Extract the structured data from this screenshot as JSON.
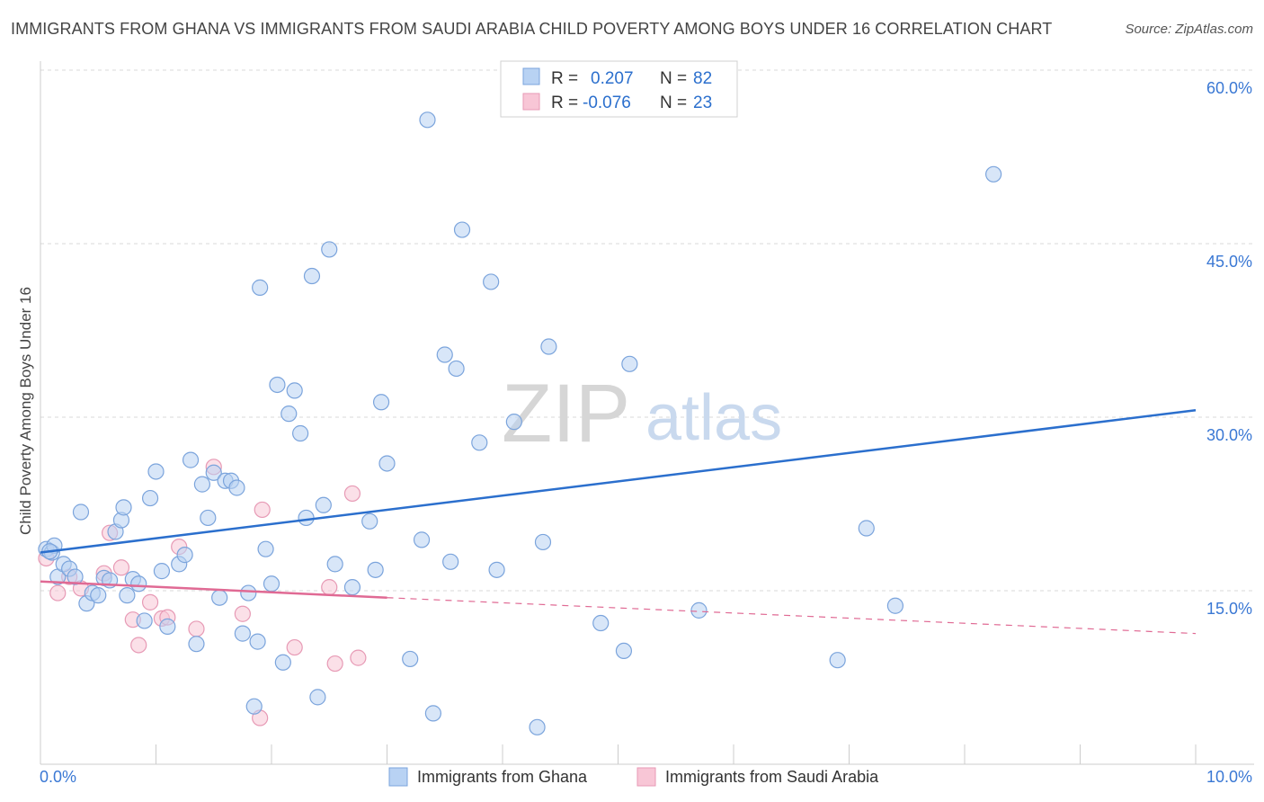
{
  "header": {
    "title": "IMMIGRANTS FROM GHANA VS IMMIGRANTS FROM SAUDI ARABIA CHILD POVERTY AMONG BOYS UNDER 16 CORRELATION CHART",
    "source": "Source: ZipAtlas.com"
  },
  "watermark": {
    "zip": "ZIP",
    "atlas": "atlas"
  },
  "legend_top": {
    "rows": [
      {
        "r_label": "R =",
        "r_value": "0.207",
        "n_label": "N =",
        "n_value": "82"
      },
      {
        "r_label": "R =",
        "r_value": "-0.076",
        "n_label": "N =",
        "n_value": "23"
      }
    ]
  },
  "colors": {
    "ghana_fill": "#b8d2f3",
    "ghana_stroke": "#7ba4dc",
    "ghana_line": "#2b6fcd",
    "saudi_fill": "#f8c6d6",
    "saudi_stroke": "#e79ab5",
    "saudi_line": "#e06a94",
    "axis_text": "#3a78d4",
    "grid": "#d9d9d9"
  },
  "chart_data": {
    "type": "scatter",
    "title": "IMMIGRANTS FROM GHANA VS IMMIGRANTS FROM SAUDI ARABIA CHILD POVERTY AMONG BOYS UNDER 16 CORRELATION CHART",
    "ylabel": "Child Poverty Among Boys Under 16",
    "xlabel": "",
    "xlim": [
      0,
      10
    ],
    "ylim": [
      0,
      60
    ],
    "x_tick_labels": [
      "0.0%",
      "10.0%"
    ],
    "y_ticks": [
      15,
      30,
      45,
      60
    ],
    "y_tick_labels": [
      "15.0%",
      "30.0%",
      "45.0%",
      "60.0%"
    ],
    "grid": true,
    "legend_position": "bottom-center",
    "series": [
      {
        "name": "Immigrants from Ghana",
        "r": 0.207,
        "n": 82,
        "trend": {
          "x": [
            0,
            10
          ],
          "y": [
            18.3,
            30.6
          ]
        },
        "points": [
          [
            0.05,
            18.6
          ],
          [
            0.1,
            18.3
          ],
          [
            0.12,
            18.9
          ],
          [
            0.15,
            16.2
          ],
          [
            0.2,
            17.3
          ],
          [
            0.25,
            16.9
          ],
          [
            0.3,
            16.2
          ],
          [
            0.35,
            21.8
          ],
          [
            0.4,
            13.9
          ],
          [
            0.45,
            14.8
          ],
          [
            0.5,
            14.6
          ],
          [
            0.55,
            16.1
          ],
          [
            0.6,
            15.9
          ],
          [
            0.65,
            20.1
          ],
          [
            0.7,
            21.1
          ],
          [
            0.72,
            22.2
          ],
          [
            0.75,
            14.6
          ],
          [
            0.8,
            16.0
          ],
          [
            0.85,
            15.6
          ],
          [
            0.9,
            12.4
          ],
          [
            0.95,
            23.0
          ],
          [
            1.0,
            25.3
          ],
          [
            1.05,
            16.7
          ],
          [
            1.1,
            11.9
          ],
          [
            1.2,
            17.3
          ],
          [
            1.25,
            18.1
          ],
          [
            1.3,
            26.3
          ],
          [
            1.35,
            10.4
          ],
          [
            1.4,
            24.2
          ],
          [
            1.45,
            21.3
          ],
          [
            1.5,
            25.2
          ],
          [
            1.55,
            14.4
          ],
          [
            1.6,
            24.5
          ],
          [
            1.65,
            24.5
          ],
          [
            1.7,
            23.9
          ],
          [
            1.75,
            11.3
          ],
          [
            1.8,
            14.8
          ],
          [
            1.85,
            5.0
          ],
          [
            1.88,
            10.6
          ],
          [
            1.9,
            41.2
          ],
          [
            1.95,
            18.6
          ],
          [
            2.0,
            15.6
          ],
          [
            2.05,
            32.8
          ],
          [
            2.1,
            8.8
          ],
          [
            2.15,
            30.3
          ],
          [
            2.2,
            32.3
          ],
          [
            2.25,
            28.6
          ],
          [
            2.3,
            21.3
          ],
          [
            2.35,
            42.2
          ],
          [
            2.4,
            5.8
          ],
          [
            2.45,
            22.4
          ],
          [
            2.5,
            44.5
          ],
          [
            2.55,
            17.3
          ],
          [
            2.7,
            15.3
          ],
          [
            2.85,
            21.0
          ],
          [
            2.9,
            16.8
          ],
          [
            2.95,
            31.3
          ],
          [
            3.0,
            26.0
          ],
          [
            3.2,
            9.1
          ],
          [
            3.3,
            19.4
          ],
          [
            3.35,
            55.7
          ],
          [
            3.4,
            4.4
          ],
          [
            3.5,
            35.4
          ],
          [
            3.55,
            17.5
          ],
          [
            3.6,
            34.2
          ],
          [
            3.65,
            46.2
          ],
          [
            3.8,
            27.8
          ],
          [
            3.9,
            41.7
          ],
          [
            3.95,
            16.8
          ],
          [
            4.1,
            29.6
          ],
          [
            4.3,
            3.2
          ],
          [
            4.35,
            19.2
          ],
          [
            4.4,
            36.1
          ],
          [
            4.85,
            12.2
          ],
          [
            5.05,
            9.8
          ],
          [
            5.1,
            34.6
          ],
          [
            5.7,
            13.3
          ],
          [
            6.9,
            9.0
          ],
          [
            7.15,
            20.4
          ],
          [
            7.4,
            13.7
          ],
          [
            8.25,
            51.0
          ],
          [
            0.08,
            18.4
          ]
        ]
      },
      {
        "name": "Immigrants from Saudi Arabia",
        "r": -0.076,
        "n": 23,
        "trend": {
          "x": [
            0,
            3.0
          ],
          "y": [
            15.8,
            14.4
          ]
        },
        "trend_dashed": {
          "x": [
            3.0,
            10
          ],
          "y": [
            14.4,
            11.3
          ]
        },
        "points": [
          [
            0.05,
            17.8
          ],
          [
            0.15,
            14.8
          ],
          [
            0.25,
            16.2
          ],
          [
            0.35,
            15.2
          ],
          [
            0.55,
            16.5
          ],
          [
            0.6,
            20.0
          ],
          [
            0.7,
            17.0
          ],
          [
            0.8,
            12.5
          ],
          [
            0.85,
            10.3
          ],
          [
            0.95,
            14.0
          ],
          [
            1.05,
            12.6
          ],
          [
            1.1,
            12.7
          ],
          [
            1.2,
            18.8
          ],
          [
            1.35,
            11.7
          ],
          [
            1.5,
            25.7
          ],
          [
            1.75,
            13.0
          ],
          [
            1.9,
            4.0
          ],
          [
            1.92,
            22.0
          ],
          [
            2.2,
            10.1
          ],
          [
            2.5,
            15.3
          ],
          [
            2.55,
            8.7
          ],
          [
            2.7,
            23.4
          ],
          [
            2.75,
            9.2
          ]
        ]
      }
    ]
  }
}
